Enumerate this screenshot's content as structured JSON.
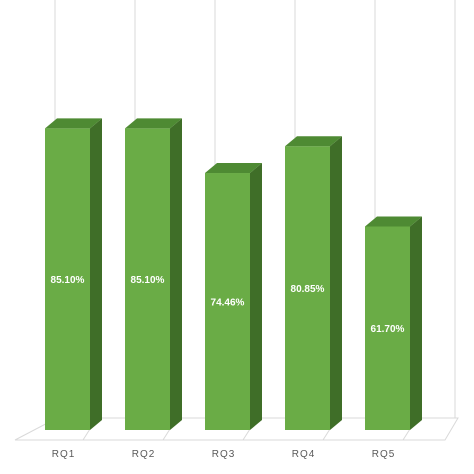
{
  "chart_data": {
    "type": "bar",
    "categories": [
      "RQ1",
      "RQ2",
      "RQ3",
      "RQ4",
      "RQ5"
    ],
    "values": [
      85.1,
      85.1,
      74.46,
      80.85,
      61.7
    ],
    "data_labels": [
      "85.10%",
      "85.10%",
      "74.46%",
      "80.85%",
      "61.70%"
    ],
    "title": "",
    "xlabel": "",
    "ylabel": "",
    "ylim": [
      0,
      100
    ],
    "grid": "vertical",
    "style": "3d-column",
    "colors": {
      "front": "#6aac46",
      "side": "#3f6e28",
      "top": "#4e8a33",
      "data_label": "#ffffff",
      "category_label": "#595959",
      "grid": "#d9d9d9"
    }
  }
}
